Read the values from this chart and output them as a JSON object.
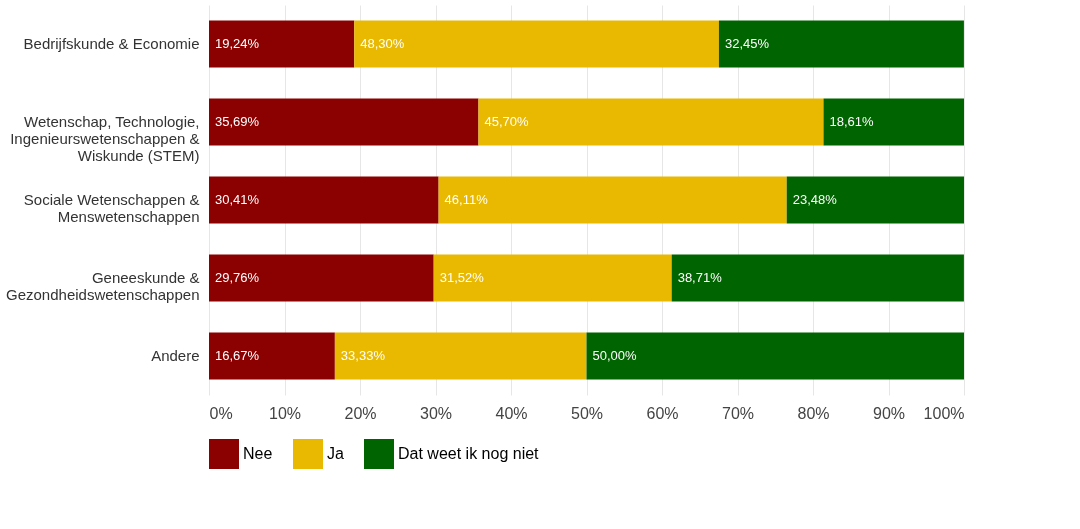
{
  "chart_data": {
    "type": "bar",
    "orientation": "horizontal",
    "stacked": true,
    "categories": [
      "Bedrijfskunde & Economie",
      "Wetenschap, Technologie,\nIngenieurswetenschappen &\nWiskunde (STEM)",
      "Sociale Wetenschappen &\nMenswetenschappen",
      "Geneeskunde &\nGezondheidswetenschappen",
      "Andere"
    ],
    "series": [
      {
        "name": "Nee",
        "color": "#8b0000",
        "values": [
          19.24,
          35.69,
          30.41,
          29.76,
          16.67
        ],
        "value_labels": [
          "19,24%",
          "35,69%",
          "30,41%",
          "29,76%",
          "16,67%"
        ]
      },
      {
        "name": "Ja",
        "color": "#e8b900",
        "values": [
          48.3,
          45.7,
          46.11,
          31.52,
          33.33
        ],
        "value_labels": [
          "48,30%",
          "45,70%",
          "46,11%",
          "31,52%",
          "33,33%"
        ]
      },
      {
        "name": "Dat weet ik nog niet",
        "color": "#006400",
        "values": [
          32.45,
          18.61,
          23.48,
          38.71,
          50.0
        ],
        "value_labels": [
          "32,45%",
          "18,61%",
          "23,48%",
          "38,71%",
          "50,00%"
        ]
      }
    ],
    "xlim": [
      0,
      100
    ],
    "xticks": [
      {
        "value": 0,
        "label": "0%"
      },
      {
        "value": 10,
        "label": "10%"
      },
      {
        "value": 20,
        "label": "20%"
      },
      {
        "value": 30,
        "label": "30%"
      },
      {
        "value": 40,
        "label": "40%"
      },
      {
        "value": 50,
        "label": "50%"
      },
      {
        "value": 60,
        "label": "60%"
      },
      {
        "value": 70,
        "label": "70%"
      },
      {
        "value": 80,
        "label": "80%"
      },
      {
        "value": 90,
        "label": "90%"
      },
      {
        "value": 100,
        "label": "100%"
      }
    ],
    "grid": "x",
    "legend": "bottom"
  }
}
